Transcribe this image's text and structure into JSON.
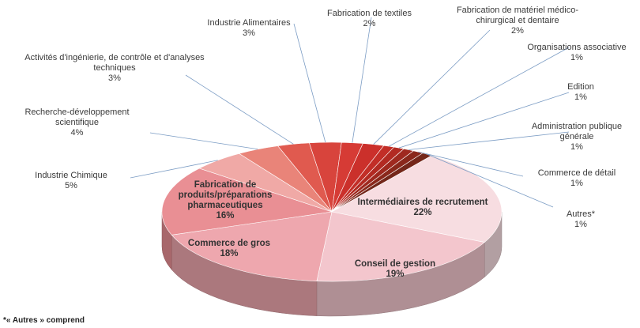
{
  "chart_data": {
    "type": "pie3d",
    "categories": [
      "Intermédiaires de recrutement",
      "Conseil de gestion",
      "Commerce de gros",
      "Fabrication de produits/préparations pharmaceutiques",
      "Industrie Chimique",
      "Recherche-développement scientifique",
      "Activités d'ingénierie, de contrôle et d'analyses techniques",
      "Industrie Alimentaires",
      "Fabrication de textiles",
      "Fabrication de matériel médico-chirurgical et dentaire",
      "Organisations associative",
      "Edition",
      "Administration publique générale",
      "Commerce de détail",
      "Autres*"
    ],
    "values": [
      22,
      19,
      18,
      16,
      5,
      4,
      3,
      3,
      2,
      2,
      1,
      1,
      1,
      1,
      1
    ],
    "value_labels": [
      "22%",
      "19%",
      "18%",
      "16%",
      "5%",
      "4%",
      "3%",
      "3%",
      "2%",
      "2%",
      "1%",
      "1%",
      "1%",
      "1%",
      "1%"
    ],
    "colors": [
      "#f7dde1",
      "#f3c6cd",
      "#eea7ae",
      "#e98f94",
      "#f0a9a6",
      "#e98479",
      "#e05a4f",
      "#d8443c",
      "#d63b35",
      "#cb302b",
      "#c22e27",
      "#b22a22",
      "#9f291f",
      "#8a281b",
      "#74271a"
    ],
    "footnote": "*« Autres » comprend"
  }
}
